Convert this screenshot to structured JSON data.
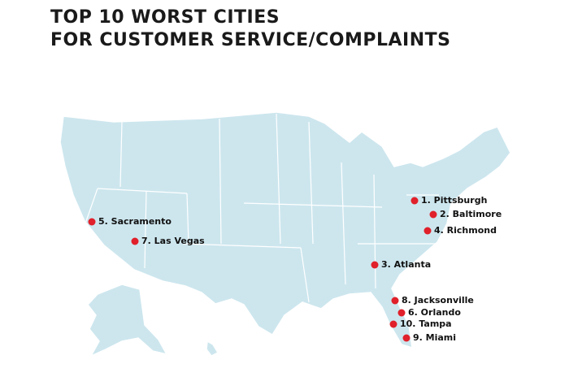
{
  "title": [
    "TOP 10 WORST CITIES",
    "FOR CUSTOMER SERVICE/COMPLAINTS"
  ],
  "cities": [
    "1. Pittsburgh",
    "2. Baltimore",
    "4. Richmond",
    "3. Atlanta",
    "5. Sacramento",
    "7. Las Vegas",
    "8. Jacksonville",
    "6. Orlando",
    "10. Tampa",
    "9. Miami"
  ]
}
